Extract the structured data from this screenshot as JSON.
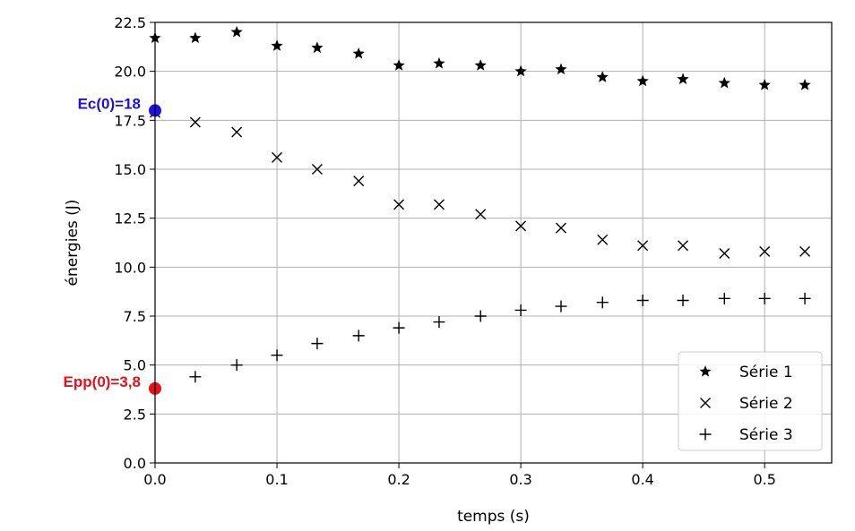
{
  "chart_data": {
    "type": "scatter",
    "title": "",
    "xlabel": "temps (s)",
    "ylabel": "énergies (J)",
    "xlim": [
      0.0,
      0.555
    ],
    "ylim": [
      0.0,
      22.5
    ],
    "xticks": [
      "0.0",
      "0.1",
      "0.2",
      "0.3",
      "0.4",
      "0.5"
    ],
    "yticks": [
      "0.0",
      "2.5",
      "5.0",
      "7.5",
      "10.0",
      "12.5",
      "15.0",
      "17.5",
      "20.0",
      "22.5"
    ],
    "grid": true,
    "legend_position": "lower-right",
    "x": [
      0.0,
      0.033,
      0.067,
      0.1,
      0.133,
      0.167,
      0.2,
      0.233,
      0.267,
      0.3,
      0.333,
      0.367,
      0.4,
      0.433,
      0.467,
      0.5,
      0.533
    ],
    "series": [
      {
        "name": "Série 1",
        "marker": "star",
        "color": "#000000",
        "values": [
          21.7,
          21.7,
          22.0,
          21.3,
          21.2,
          20.9,
          20.3,
          20.4,
          20.3,
          20.0,
          20.1,
          19.7,
          19.5,
          19.6,
          19.4,
          19.3,
          19.3
        ]
      },
      {
        "name": "Série 2",
        "marker": "x",
        "color": "#000000",
        "values": [
          17.9,
          17.4,
          16.9,
          15.6,
          15.0,
          14.4,
          13.2,
          13.2,
          12.7,
          12.1,
          12.0,
          11.4,
          11.1,
          11.1,
          10.7,
          10.8,
          10.8
        ]
      },
      {
        "name": "Série 3",
        "marker": "plus",
        "color": "#000000",
        "values": [
          3.8,
          4.4,
          5.0,
          5.5,
          6.1,
          6.5,
          6.9,
          7.2,
          7.5,
          7.8,
          8.0,
          8.2,
          8.3,
          8.3,
          8.4,
          8.4,
          8.4
        ]
      }
    ],
    "annotations": [
      {
        "text": "Ec(0)=18",
        "x": 0.0,
        "y": 18.0,
        "color": "#1f10e0",
        "side": "left"
      },
      {
        "text": "Epp(0)=3,8",
        "x": 0.0,
        "y": 3.8,
        "color": "#e8101a",
        "side": "left"
      }
    ]
  }
}
